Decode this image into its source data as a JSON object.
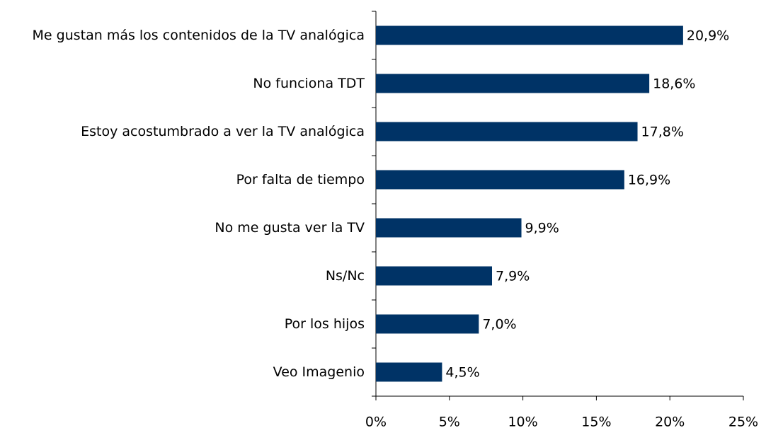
{
  "chart_data": {
    "type": "hbar",
    "categories": [
      "Me gustan más los contenidos de la TV analógica",
      "No funciona TDT",
      "Estoy acostumbrado a ver la TV analógica",
      "Por falta de tiempo",
      "No me gusta ver la TV",
      "Ns/Nc",
      "Por los hijos",
      "Veo Imagenio"
    ],
    "values": [
      20.9,
      18.6,
      17.8,
      16.9,
      9.9,
      7.9,
      7.0,
      4.5
    ],
    "value_labels": [
      "20,9%",
      "18,6%",
      "17,8%",
      "16,9%",
      "9,9%",
      "7,9%",
      "7,0%",
      "4,5%"
    ],
    "color": "#003366",
    "xlim": [
      0,
      25
    ],
    "xticks": [
      {
        "value": 0,
        "label": "0%"
      },
      {
        "value": 5,
        "label": "5%"
      },
      {
        "value": 10,
        "label": "10%"
      },
      {
        "value": 15,
        "label": "15%"
      },
      {
        "value": 20,
        "label": "20%"
      },
      {
        "value": 25,
        "label": "25%"
      }
    ],
    "grid": false
  }
}
